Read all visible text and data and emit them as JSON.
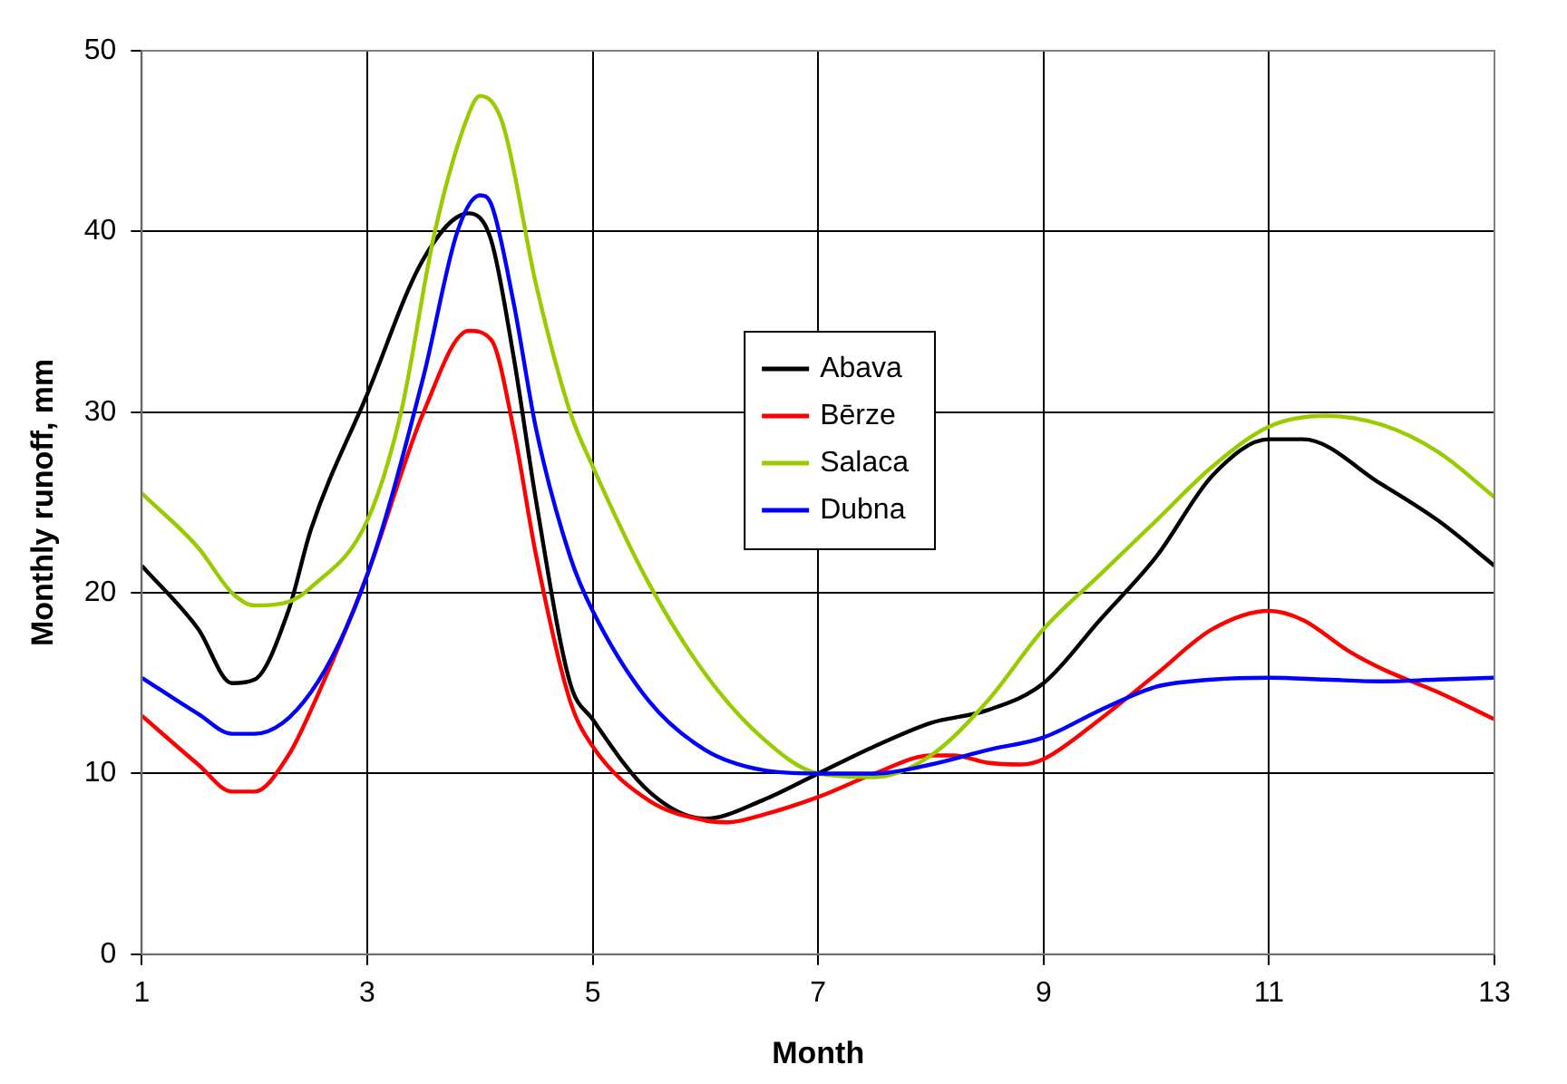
{
  "chart_data": {
    "type": "line",
    "xlabel": "Month",
    "ylabel": "Monthly runoff, mm",
    "xlim": [
      1,
      13
    ],
    "xticks": [
      1,
      3,
      5,
      7,
      9,
      11,
      13
    ],
    "ylim": [
      0,
      50
    ],
    "yticks": [
      0,
      10,
      20,
      30,
      40,
      50
    ],
    "grid": true,
    "legend": "center",
    "marker": "none",
    "line_style": "solid",
    "series": [
      {
        "name": "Abava",
        "color": "#000000",
        "x": [
          1,
          1.5,
          1.8,
          2,
          2.3,
          2.5,
          3,
          3.5,
          3.9,
          4.1,
          4.3,
          4.5,
          4.8,
          5,
          5.5,
          6,
          6.5,
          7,
          7.5,
          8,
          8.5,
          9,
          9.5,
          10,
          10.5,
          11,
          11.3,
          12,
          12.5,
          13
        ],
        "values": [
          21.5,
          18,
          15,
          15.2,
          19,
          23.5,
          31,
          38.5,
          41,
          39.5,
          33,
          25,
          15,
          13,
          9,
          7.5,
          8.5,
          10,
          11.5,
          12.8,
          13.5,
          15,
          18.5,
          22,
          26.5,
          28.5,
          28.5,
          26,
          24,
          21.5
        ]
      },
      {
        "name": "Bērze",
        "color": "#ff0000",
        "x": [
          1,
          1.5,
          1.8,
          2,
          2.3,
          2.5,
          3,
          3.5,
          3.9,
          4.1,
          4.3,
          4.5,
          4.8,
          5,
          5.5,
          6,
          6.2,
          6.5,
          7,
          7.5,
          8,
          8.2,
          8.5,
          8.8,
          9,
          9.5,
          10,
          10.5,
          11,
          11.3,
          11.7,
          12,
          12.5,
          13
        ],
        "values": [
          13.2,
          10.5,
          9,
          9,
          11,
          13.5,
          21,
          30,
          34.5,
          34,
          29,
          22,
          14,
          11.5,
          8.5,
          7.4,
          7.3,
          7.7,
          8.7,
          10,
          11,
          11,
          10.6,
          10.5,
          10.8,
          13,
          15.5,
          18,
          19,
          18.5,
          16.8,
          15.8,
          14.5,
          13
        ]
      },
      {
        "name": "Salaca",
        "color": "#99cc00",
        "x": [
          1,
          1.5,
          1.8,
          2,
          2.3,
          2.5,
          3,
          3.3,
          3.6,
          3.9,
          4,
          4.2,
          4.5,
          4.8,
          5,
          5.5,
          6,
          6.5,
          7,
          7.5,
          8,
          8.5,
          9,
          9.5,
          10,
          10.5,
          11,
          11.5,
          12,
          12.5,
          13
        ],
        "values": [
          25.5,
          22.5,
          20,
          19.3,
          19.5,
          20.3,
          24,
          30,
          40,
          46.5,
          47.5,
          46,
          37,
          30,
          27,
          20.5,
          15.5,
          12,
          10,
          9.8,
          11,
          14,
          18,
          21,
          24,
          27,
          29.2,
          29.8,
          29.3,
          27.8,
          25.3
        ]
      },
      {
        "name": "Dubna",
        "color": "#0000ff",
        "x": [
          1,
          1.5,
          1.8,
          2,
          2.5,
          3,
          3.5,
          3.8,
          4,
          4.1,
          4.3,
          4.5,
          4.8,
          5,
          5.5,
          6,
          6.5,
          7,
          7.5,
          8,
          8.5,
          9,
          9.5,
          10,
          10.5,
          11,
          11.5,
          12,
          12.5,
          13
        ],
        "values": [
          15.3,
          13.3,
          12.2,
          12.2,
          14.5,
          21,
          32,
          40,
          42,
          41.5,
          36,
          29,
          22,
          19,
          14,
          11.3,
          10.2,
          10,
          10,
          10.5,
          11.3,
          12,
          13.5,
          14.8,
          15.2,
          15.3,
          15.2,
          15.1,
          15.2,
          15.3
        ]
      }
    ]
  }
}
